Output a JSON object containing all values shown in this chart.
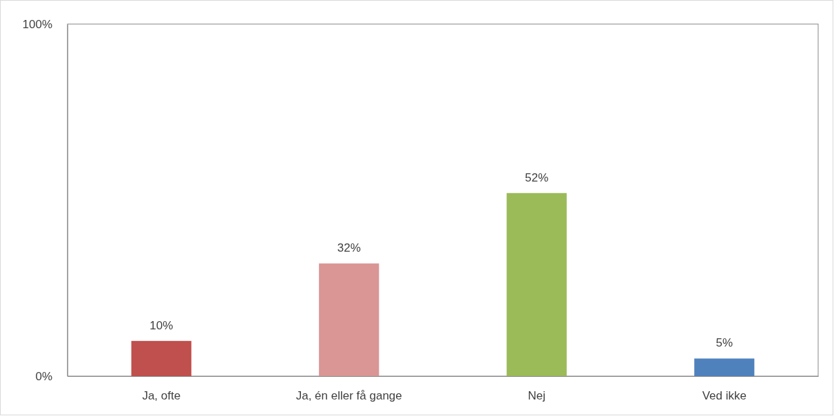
{
  "chart_data": {
    "type": "bar",
    "categories": [
      "Ja, ofte",
      "Ja, én eller få gange",
      "Nej",
      "Ved ikke"
    ],
    "values": [
      10,
      32,
      52,
      5
    ],
    "colors": [
      "#c0504d",
      "#d99694",
      "#9bbb59",
      "#4f81bd"
    ],
    "value_labels": [
      "10%",
      "32%",
      "52%",
      "5%"
    ],
    "ylim": [
      0,
      100
    ],
    "yticks": [
      {
        "value": 0,
        "label": "0%"
      },
      {
        "value": 100,
        "label": "100%"
      }
    ],
    "grid": false
  }
}
